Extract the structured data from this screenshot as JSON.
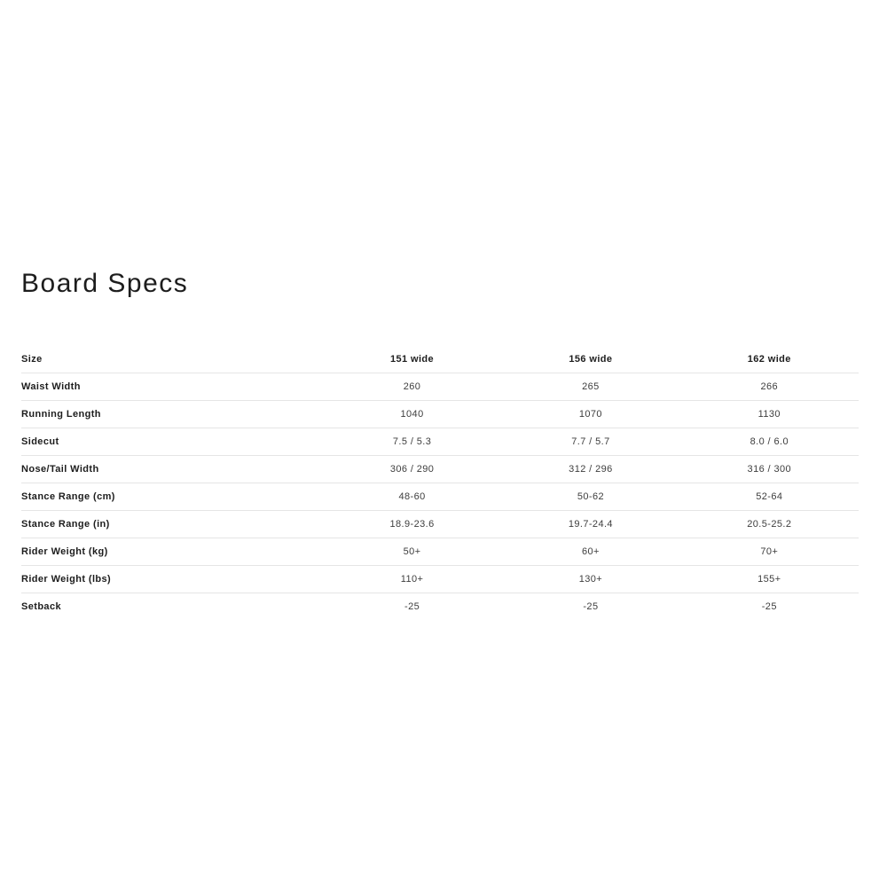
{
  "page": {
    "title": "Board Specs",
    "colors": {
      "background": "#ffffff",
      "heading_text": "#1d1d1d",
      "label_text": "#1d1d1d",
      "value_text": "#3d3d3d",
      "row_border": "#e5e5e5"
    }
  },
  "table": {
    "header": {
      "label": "Size",
      "columns": [
        "151 wide",
        "156 wide",
        "162 wide"
      ]
    },
    "rows": [
      {
        "label": "Waist Width",
        "values": [
          "260",
          "265",
          "266"
        ]
      },
      {
        "label": "Running Length",
        "values": [
          "1040",
          "1070",
          "1130"
        ]
      },
      {
        "label": "Sidecut",
        "values": [
          "7.5 / 5.3",
          "7.7 / 5.7",
          "8.0 / 6.0"
        ]
      },
      {
        "label": "Nose/Tail Width",
        "values": [
          "306 / 290",
          "312 / 296",
          "316 / 300"
        ]
      },
      {
        "label": "Stance Range (cm)",
        "values": [
          "48-60",
          "50-62",
          "52-64"
        ]
      },
      {
        "label": "Stance Range (in)",
        "values": [
          "18.9-23.6",
          "19.7-24.4",
          "20.5-25.2"
        ]
      },
      {
        "label": "Rider Weight (kg)",
        "values": [
          "50+",
          "60+",
          "70+"
        ]
      },
      {
        "label": "Rider Weight (lbs)",
        "values": [
          "110+",
          "130+",
          "155+"
        ]
      },
      {
        "label": "Setback",
        "values": [
          "-25",
          "-25",
          "-25"
        ]
      }
    ]
  }
}
